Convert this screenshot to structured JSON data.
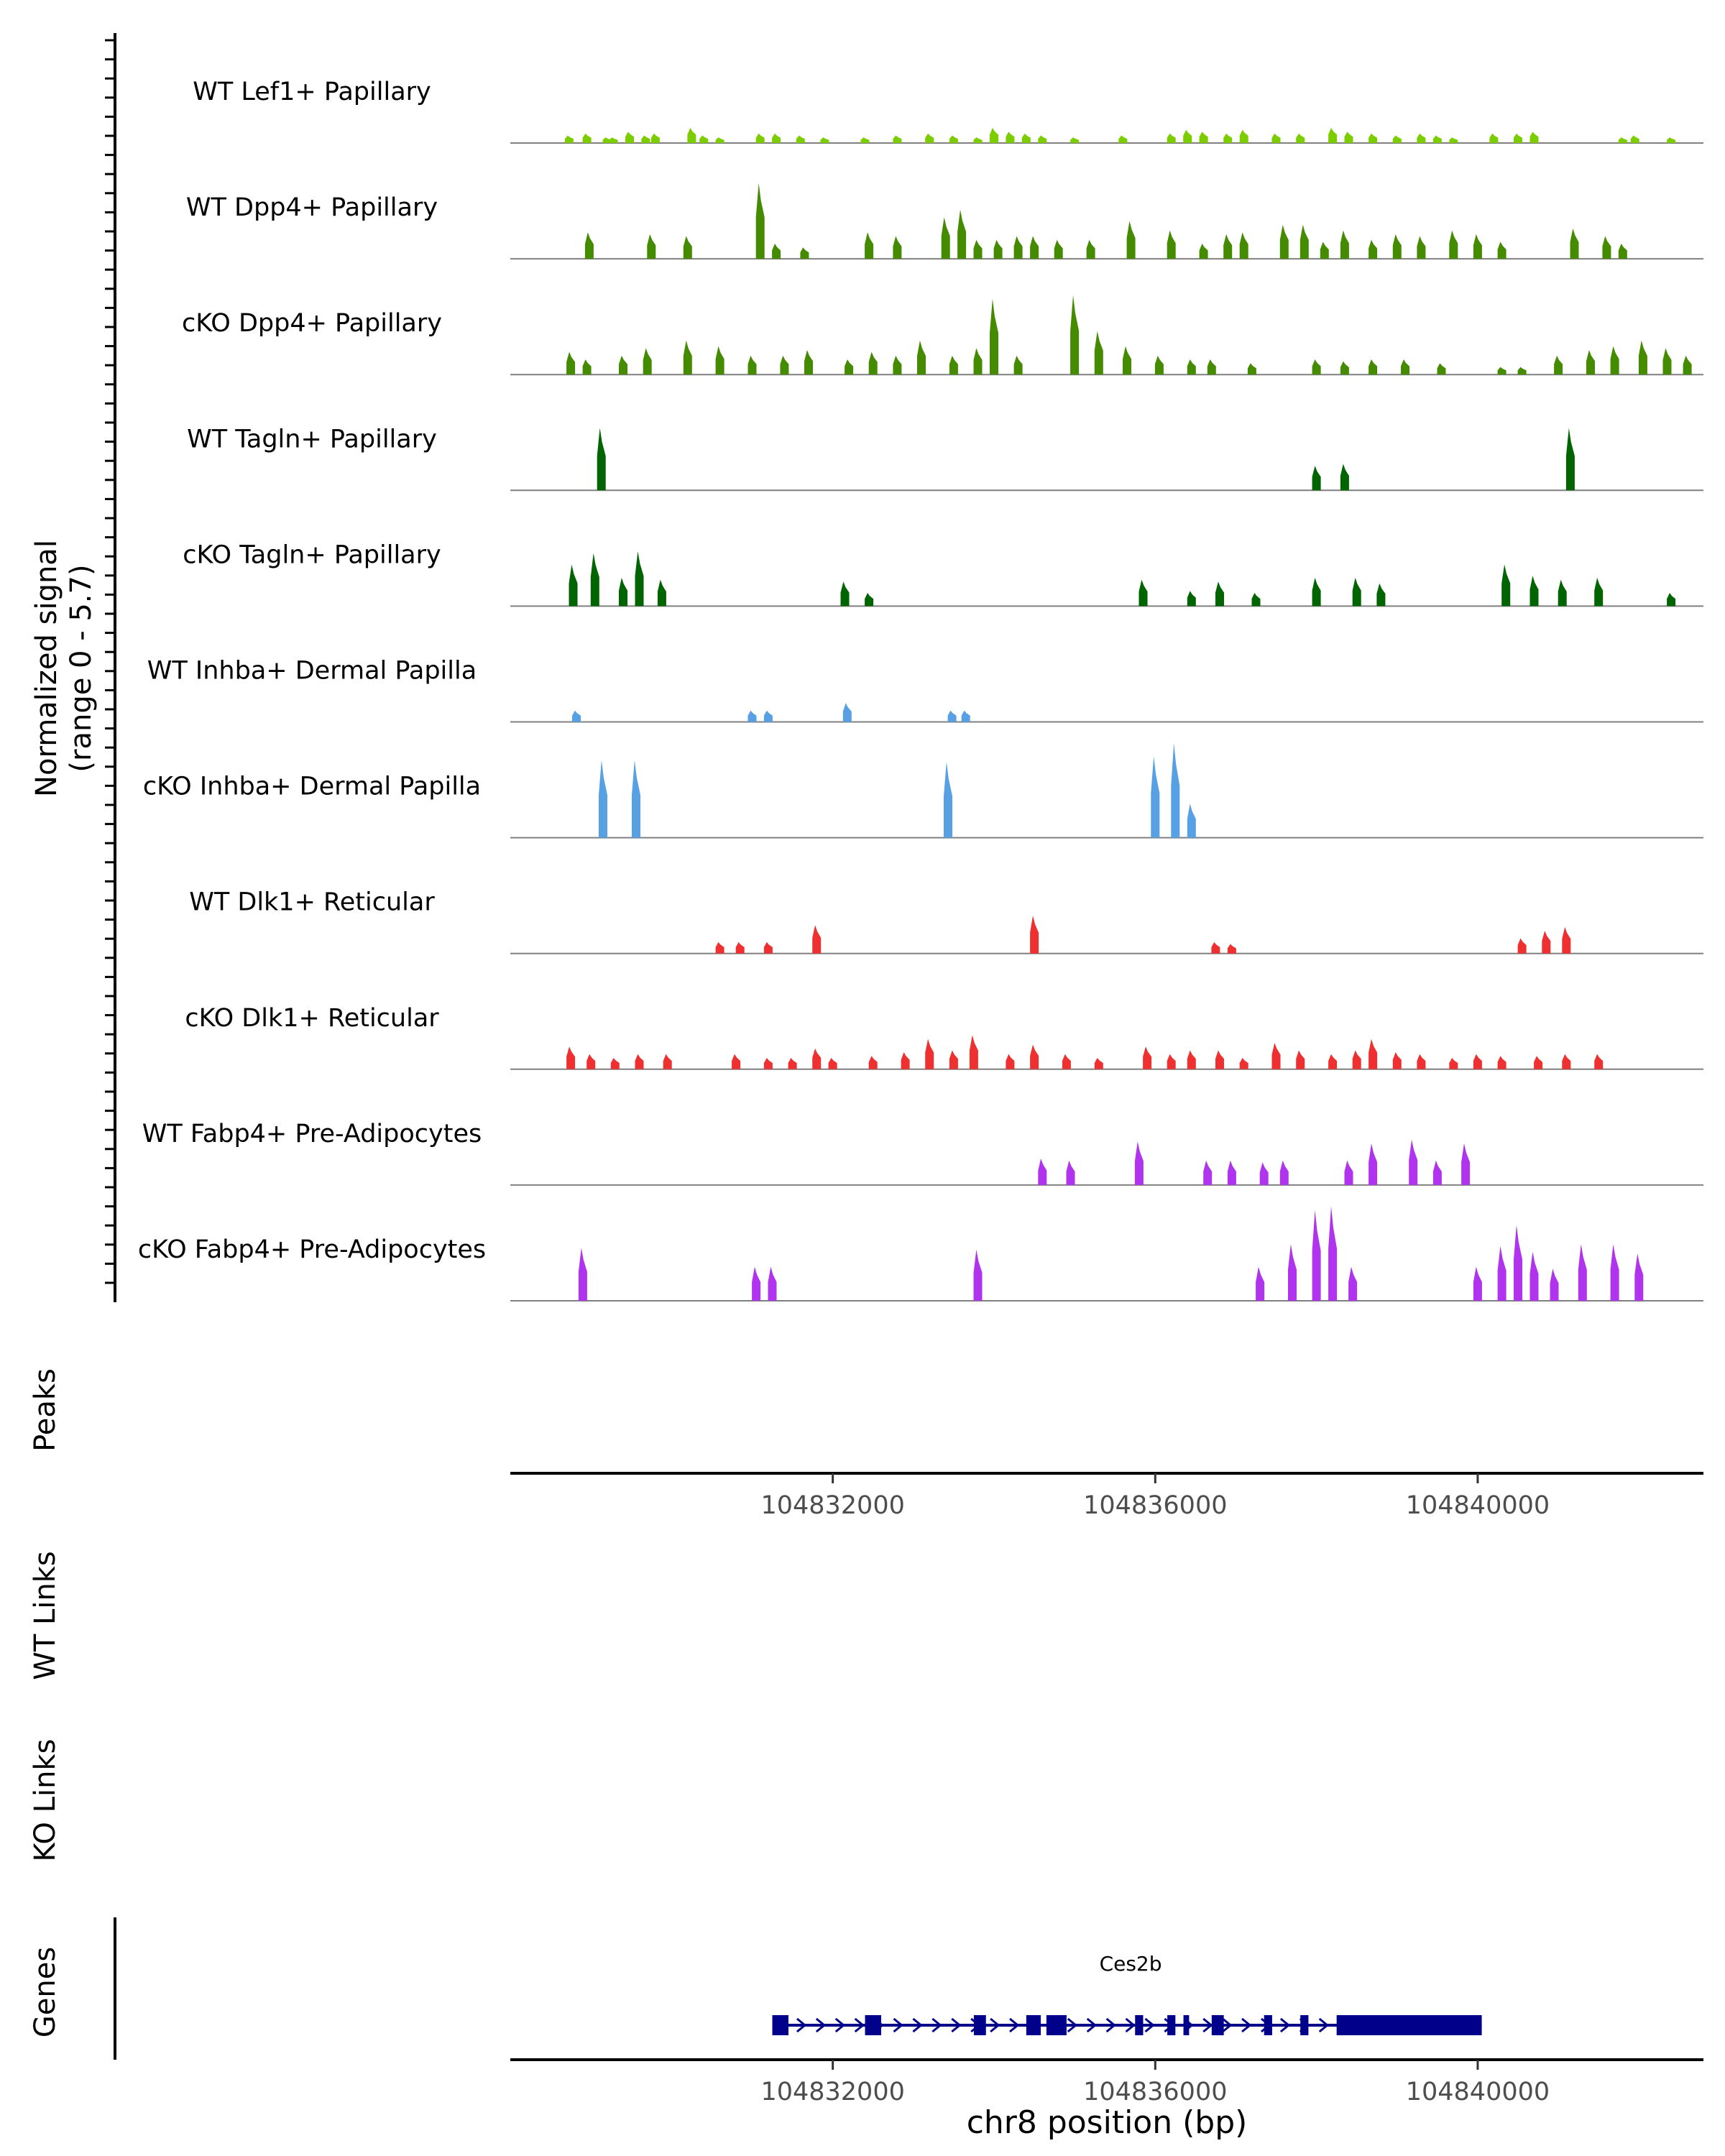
{
  "chart_data": {
    "type": "area",
    "title": "",
    "ylabel": "Normalized signal",
    "ylabel_range": "(range 0 - 5.7)",
    "xlabel": "chr8 position (bp)",
    "xlim": [
      104828000,
      104842800
    ],
    "ylim": [
      0,
      5.7
    ],
    "xticks": [
      104832000,
      104836000,
      104840000
    ],
    "xtick_labels": [
      "104832000",
      "104836000",
      "104840000"
    ],
    "tracks": [
      {
        "name": "WT Lef1+ Papillary",
        "color": "#7CCD00",
        "peaks": [
          [
            104828730,
            0.4
          ],
          [
            104828950,
            0.5
          ],
          [
            104829200,
            0.3
          ],
          [
            104829280,
            0.3
          ],
          [
            104829480,
            0.6
          ],
          [
            104829680,
            0.4
          ],
          [
            104829800,
            0.5
          ],
          [
            104830250,
            0.8
          ],
          [
            104830400,
            0.4
          ],
          [
            104830600,
            0.3
          ],
          [
            104831100,
            0.5
          ],
          [
            104831300,
            0.5
          ],
          [
            104831600,
            0.4
          ],
          [
            104831900,
            0.3
          ],
          [
            104832400,
            0.3
          ],
          [
            104832800,
            0.4
          ],
          [
            104833200,
            0.5
          ],
          [
            104833500,
            0.4
          ],
          [
            104833800,
            0.3
          ],
          [
            104834000,
            0.8
          ],
          [
            104834200,
            0.6
          ],
          [
            104834400,
            0.5
          ],
          [
            104834600,
            0.4
          ],
          [
            104835000,
            0.3
          ],
          [
            104835600,
            0.4
          ],
          [
            104836200,
            0.5
          ],
          [
            104836400,
            0.7
          ],
          [
            104836600,
            0.6
          ],
          [
            104836900,
            0.5
          ],
          [
            104837100,
            0.7
          ],
          [
            104837500,
            0.5
          ],
          [
            104837800,
            0.5
          ],
          [
            104838200,
            0.8
          ],
          [
            104838400,
            0.6
          ],
          [
            104838700,
            0.5
          ],
          [
            104839000,
            0.4
          ],
          [
            104839300,
            0.5
          ],
          [
            104839500,
            0.4
          ],
          [
            104839700,
            0.3
          ],
          [
            104840200,
            0.5
          ],
          [
            104840500,
            0.5
          ],
          [
            104840700,
            0.6
          ],
          [
            104841800,
            0.3
          ],
          [
            104841950,
            0.4
          ],
          [
            104842400,
            0.3
          ]
        ]
      },
      {
        "name": "WT Dpp4+ Papillary",
        "color": "#458B00",
        "peaks": [
          [
            104828980,
            1.4
          ],
          [
            104829750,
            1.3
          ],
          [
            104830200,
            1.2
          ],
          [
            104831100,
            4.0
          ],
          [
            104831300,
            0.8
          ],
          [
            104831650,
            0.6
          ],
          [
            104832450,
            1.4
          ],
          [
            104832800,
            1.2
          ],
          [
            104833400,
            2.2
          ],
          [
            104833600,
            2.6
          ],
          [
            104833800,
            1.0
          ],
          [
            104834050,
            1.0
          ],
          [
            104834300,
            1.2
          ],
          [
            104834500,
            1.2
          ],
          [
            104834800,
            1.0
          ],
          [
            104835200,
            1.0
          ],
          [
            104835700,
            2.0
          ],
          [
            104836200,
            1.5
          ],
          [
            104836600,
            0.8
          ],
          [
            104836900,
            1.3
          ],
          [
            104837100,
            1.4
          ],
          [
            104837600,
            1.8
          ],
          [
            104837850,
            1.8
          ],
          [
            104838100,
            0.9
          ],
          [
            104838350,
            1.5
          ],
          [
            104838700,
            1.0
          ],
          [
            104839000,
            1.3
          ],
          [
            104839300,
            1.2
          ],
          [
            104839700,
            1.5
          ],
          [
            104840000,
            1.3
          ],
          [
            104840300,
            0.9
          ],
          [
            104841200,
            1.6
          ],
          [
            104841600,
            1.2
          ],
          [
            104841800,
            0.8
          ]
        ]
      },
      {
        "name": "cKO Dpp4+ Papillary",
        "color": "#458B00",
        "peaks": [
          [
            104828750,
            1.2
          ],
          [
            104828950,
            0.8
          ],
          [
            104829400,
            1.0
          ],
          [
            104829700,
            1.4
          ],
          [
            104830200,
            1.8
          ],
          [
            104830600,
            1.5
          ],
          [
            104831000,
            1.0
          ],
          [
            104831400,
            1.0
          ],
          [
            104831700,
            1.3
          ],
          [
            104832200,
            0.8
          ],
          [
            104832500,
            1.2
          ],
          [
            104832800,
            1.0
          ],
          [
            104833100,
            1.8
          ],
          [
            104833500,
            1.0
          ],
          [
            104833800,
            1.4
          ],
          [
            104834000,
            4.0
          ],
          [
            104834300,
            1.0
          ],
          [
            104835000,
            4.2
          ],
          [
            104835300,
            2.3
          ],
          [
            104835650,
            1.5
          ],
          [
            104836050,
            1.0
          ],
          [
            104836450,
            0.8
          ],
          [
            104836700,
            0.8
          ],
          [
            104837200,
            0.6
          ],
          [
            104838000,
            0.8
          ],
          [
            104838350,
            0.7
          ],
          [
            104838700,
            0.8
          ],
          [
            104839100,
            0.8
          ],
          [
            104839550,
            0.6
          ],
          [
            104840300,
            0.4
          ],
          [
            104840550,
            0.4
          ],
          [
            104841000,
            1.0
          ],
          [
            104841400,
            1.3
          ],
          [
            104841700,
            1.5
          ],
          [
            104842050,
            1.8
          ],
          [
            104842350,
            1.4
          ],
          [
            104842600,
            1.0
          ]
        ]
      },
      {
        "name": "WT Tagln+ Papillary",
        "color": "#006400",
        "peaks": [
          [
            104829130,
            3.3
          ],
          [
            104838000,
            1.3
          ],
          [
            104838350,
            1.4
          ],
          [
            104841150,
            3.3
          ]
        ]
      },
      {
        "name": "cKO Tagln+ Papillary",
        "color": "#006400",
        "peaks": [
          [
            104828780,
            2.2
          ],
          [
            104829050,
            2.8
          ],
          [
            104829400,
            1.5
          ],
          [
            104829600,
            2.9
          ],
          [
            104829880,
            1.4
          ],
          [
            104832150,
            1.3
          ],
          [
            104832450,
            0.7
          ],
          [
            104835850,
            1.4
          ],
          [
            104836450,
            0.8
          ],
          [
            104836800,
            1.3
          ],
          [
            104837250,
            0.7
          ],
          [
            104838000,
            1.5
          ],
          [
            104838500,
            1.5
          ],
          [
            104838800,
            1.2
          ],
          [
            104840350,
            2.2
          ],
          [
            104840700,
            1.6
          ],
          [
            104841050,
            1.4
          ],
          [
            104841500,
            1.5
          ],
          [
            104842400,
            0.7
          ]
        ]
      },
      {
        "name": "WT Inhba+ Dermal Papilla",
        "color": "#56A0E3",
        "peaks": [
          [
            104828820,
            0.6
          ],
          [
            104831000,
            0.6
          ],
          [
            104831200,
            0.6
          ],
          [
            104832180,
            1.0
          ],
          [
            104833480,
            0.6
          ],
          [
            104833650,
            0.6
          ]
        ]
      },
      {
        "name": "cKO Inhba+ Dermal Papilla",
        "color": "#56A0E3",
        "peaks": [
          [
            104829150,
            4.1
          ],
          [
            104829560,
            4.1
          ],
          [
            104833430,
            4.0
          ],
          [
            104836000,
            4.3
          ],
          [
            104836250,
            5.0
          ],
          [
            104836450,
            1.8
          ]
        ]
      },
      {
        "name": "WT Dlk1+ Reticular",
        "color": "#EE3030",
        "peaks": [
          [
            104830600,
            0.6
          ],
          [
            104830850,
            0.6
          ],
          [
            104831200,
            0.6
          ],
          [
            104831800,
            1.5
          ],
          [
            104834500,
            2.0
          ],
          [
            104836750,
            0.6
          ],
          [
            104836950,
            0.5
          ],
          [
            104840550,
            0.8
          ],
          [
            104840850,
            1.2
          ],
          [
            104841100,
            1.4
          ]
        ]
      },
      {
        "name": "cKO Dlk1+ Reticular",
        "color": "#EE3030",
        "peaks": [
          [
            104828750,
            1.2
          ],
          [
            104829000,
            0.8
          ],
          [
            104829300,
            0.6
          ],
          [
            104829600,
            0.8
          ],
          [
            104829950,
            0.8
          ],
          [
            104830800,
            0.8
          ],
          [
            104831200,
            0.6
          ],
          [
            104831500,
            0.6
          ],
          [
            104831800,
            1.1
          ],
          [
            104832000,
            0.6
          ],
          [
            104832500,
            0.7
          ],
          [
            104832900,
            0.9
          ],
          [
            104833200,
            1.6
          ],
          [
            104833500,
            1.0
          ],
          [
            104833750,
            1.8
          ],
          [
            104834200,
            0.8
          ],
          [
            104834500,
            1.3
          ],
          [
            104834900,
            0.8
          ],
          [
            104835300,
            0.6
          ],
          [
            104835900,
            1.2
          ],
          [
            104836200,
            0.8
          ],
          [
            104836450,
            1.0
          ],
          [
            104836800,
            1.0
          ],
          [
            104837100,
            0.6
          ],
          [
            104837500,
            1.4
          ],
          [
            104837800,
            1.0
          ],
          [
            104838200,
            0.8
          ],
          [
            104838500,
            1.0
          ],
          [
            104838700,
            1.6
          ],
          [
            104839000,
            0.9
          ],
          [
            104839300,
            0.8
          ],
          [
            104839700,
            0.6
          ],
          [
            104840000,
            0.8
          ],
          [
            104840300,
            0.7
          ],
          [
            104840750,
            0.7
          ],
          [
            104841100,
            0.8
          ],
          [
            104841500,
            0.8
          ]
        ]
      },
      {
        "name": "WT Fabp4+ Pre-Adipocytes",
        "color": "#B034EE",
        "peaks": [
          [
            104834600,
            1.4
          ],
          [
            104834950,
            1.3
          ],
          [
            104835800,
            2.3
          ],
          [
            104836650,
            1.3
          ],
          [
            104836950,
            1.3
          ],
          [
            104837350,
            1.2
          ],
          [
            104837600,
            1.3
          ],
          [
            104838400,
            1.3
          ],
          [
            104838700,
            2.2
          ],
          [
            104839200,
            2.4
          ],
          [
            104839500,
            1.3
          ],
          [
            104839850,
            2.2
          ]
        ]
      },
      {
        "name": "cKO Fabp4+ Pre-Adipocytes",
        "color": "#B034EE",
        "peaks": [
          [
            104828900,
            2.8
          ],
          [
            104831050,
            1.8
          ],
          [
            104831250,
            1.8
          ],
          [
            104833800,
            2.7
          ],
          [
            104837300,
            1.8
          ],
          [
            104837700,
            3.0
          ],
          [
            104838000,
            4.8
          ],
          [
            104838200,
            5.0
          ],
          [
            104838450,
            1.8
          ],
          [
            104840000,
            1.8
          ],
          [
            104840300,
            2.9
          ],
          [
            104840500,
            4.0
          ],
          [
            104840700,
            2.6
          ],
          [
            104840950,
            1.7
          ],
          [
            104841300,
            3.0
          ],
          [
            104841700,
            3.0
          ],
          [
            104842000,
            2.5
          ]
        ]
      }
    ],
    "panels": [
      "Peaks",
      "WT Links",
      "KO Links",
      "Genes"
    ],
    "gene": {
      "name": "Ces2b",
      "start": 104831250,
      "end": 104840050,
      "strand": "+",
      "exons": [
        [
          104831250,
          104831450
        ],
        [
          104832400,
          104832600
        ],
        [
          104833750,
          104833900
        ],
        [
          104834400,
          104834580
        ],
        [
          104834650,
          104834900
        ],
        [
          104835750,
          104835850
        ],
        [
          104836150,
          104836250
        ],
        [
          104836350,
          104836420
        ],
        [
          104836700,
          104836850
        ],
        [
          104837350,
          104837450
        ],
        [
          104837800,
          104837900
        ],
        [
          104838250,
          104840050
        ]
      ]
    }
  }
}
